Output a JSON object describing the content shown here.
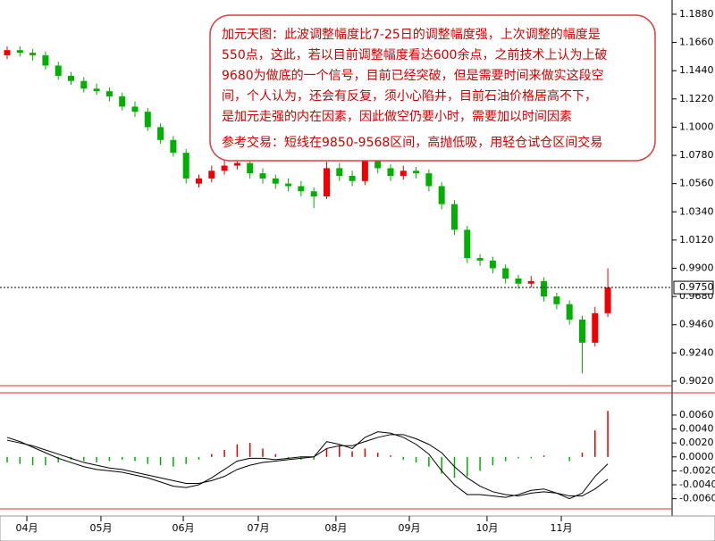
{
  "chart_data": [
    {
      "type": "candlestick",
      "annotation": [
        [
          "加元天图：此波调整幅度比7-25日的调整幅度强，上次调整的幅度是",
          "550点，这此，若以目前调整幅度看达600余点，之前技术上认为上破",
          "9680为做底的一个信号，目前已经突破，但是需要时间来做实这段空",
          "间，个人认为，还会有反复，须小心陷井，目前石油价格居高不下，",
          "是加元走强的内在因素，因此做空仍要小时，需要加以时间因素"
        ],
        [
          "参考交易：短线在9850-9568区间，高抛低吸，用轻仓试仓区间交易"
        ]
      ],
      "x": [
        0,
        1,
        2,
        3,
        4,
        5,
        6,
        7,
        8,
        9,
        10,
        11,
        12,
        13,
        14,
        15,
        16,
        17,
        18,
        19,
        20,
        21,
        22,
        23,
        24,
        25,
        26,
        27,
        28,
        29,
        30,
        31,
        32,
        33,
        34,
        35,
        36,
        37,
        38,
        39,
        40,
        41,
        42,
        43,
        44,
        45,
        46,
        47
      ],
      "open": [
        1.156,
        1.16,
        1.158,
        1.156,
        1.148,
        1.14,
        1.136,
        1.13,
        1.128,
        1.124,
        1.116,
        1.112,
        1.1,
        1.09,
        1.08,
        1.056,
        1.06,
        1.066,
        1.07,
        1.072,
        1.064,
        1.06,
        1.056,
        1.054,
        1.05,
        1.046,
        1.068,
        1.062,
        1.058,
        1.074,
        1.068,
        1.062,
        1.066,
        1.064,
        1.054,
        1.04,
        1.02,
        0.998,
        0.996,
        0.99,
        0.982,
        0.978,
        0.98,
        0.968,
        0.962,
        0.95,
        0.932,
        0.955
      ],
      "high": [
        1.163,
        1.163,
        1.161,
        1.159,
        1.151,
        1.143,
        1.139,
        1.134,
        1.131,
        1.127,
        1.12,
        1.115,
        1.103,
        1.093,
        1.083,
        1.063,
        1.07,
        1.074,
        1.076,
        1.075,
        1.068,
        1.063,
        1.06,
        1.058,
        1.053,
        1.073,
        1.072,
        1.066,
        1.09,
        1.078,
        1.071,
        1.07,
        1.069,
        1.067,
        1.057,
        1.043,
        1.023,
        1.001,
        0.999,
        0.993,
        0.985,
        0.984,
        0.983,
        0.971,
        0.965,
        0.953,
        0.96,
        0.99
      ],
      "low": [
        1.153,
        1.155,
        1.152,
        1.145,
        1.137,
        1.133,
        1.127,
        1.125,
        1.12,
        1.113,
        1.108,
        1.097,
        1.087,
        1.077,
        1.056,
        1.053,
        1.057,
        1.063,
        1.067,
        1.06,
        1.056,
        1.052,
        1.05,
        1.046,
        1.037,
        1.044,
        1.058,
        1.054,
        1.055,
        1.064,
        1.058,
        1.059,
        1.06,
        1.05,
        1.036,
        1.016,
        0.994,
        0.992,
        0.986,
        0.978,
        0.974,
        0.975,
        0.964,
        0.958,
        0.946,
        0.908,
        0.929,
        0.952
      ],
      "close": [
        1.16,
        1.158,
        1.156,
        1.148,
        1.14,
        1.136,
        1.13,
        1.128,
        1.124,
        1.116,
        1.112,
        1.1,
        1.09,
        1.08,
        1.06,
        1.06,
        1.066,
        1.07,
        1.072,
        1.064,
        1.06,
        1.056,
        1.054,
        1.05,
        1.046,
        1.068,
        1.062,
        1.058,
        1.074,
        1.068,
        1.062,
        1.066,
        1.064,
        1.054,
        1.04,
        1.02,
        0.998,
        0.996,
        0.99,
        0.982,
        0.978,
        0.98,
        0.968,
        0.962,
        0.95,
        0.932,
        0.955,
        0.975
      ],
      "up_color": "#f00000",
      "down_color": "#00b000",
      "xlim": [
        -0.56,
        52.03
      ],
      "xticks": [
        {
          "value": 1.54,
          "label": "04月"
        },
        {
          "value": 7.34,
          "label": "05月"
        },
        {
          "value": 13.78,
          "label": "06月"
        },
        {
          "value": 19.65,
          "label": "07月"
        },
        {
          "value": 25.73,
          "label": "08月"
        },
        {
          "value": 31.47,
          "label": "09月"
        },
        {
          "value": 37.55,
          "label": "10月"
        },
        {
          "value": 43.36,
          "label": "11月"
        }
      ],
      "ylim": [
        0.8985,
        1.1991
      ],
      "yticks": [
        {
          "value": 1.188,
          "label": "1.1880"
        },
        {
          "value": 1.166,
          "label": "1.1660"
        },
        {
          "value": 1.144,
          "label": "1.1440"
        },
        {
          "value": 1.122,
          "label": "1.1220"
        },
        {
          "value": 1.1,
          "label": "1.1000"
        },
        {
          "value": 1.078,
          "label": "1.0780"
        },
        {
          "value": 1.056,
          "label": "1.0560"
        },
        {
          "value": 1.034,
          "label": "1.0340"
        },
        {
          "value": 1.012,
          "label": "1.0120"
        },
        {
          "value": 0.99,
          "label": "0.9900"
        },
        {
          "value": 0.968,
          "label": "0.9680"
        },
        {
          "value": 0.946,
          "label": "0.9460"
        },
        {
          "value": 0.924,
          "label": "0.9240"
        },
        {
          "value": 0.902,
          "label": "0.9020"
        }
      ],
      "last_price": {
        "value": 0.975,
        "label": "0.9750"
      }
    },
    {
      "type": "macd",
      "xlim": [
        -0.56,
        52.03
      ],
      "histogram": {
        "up_color": "#e00000",
        "down_color": "#00b000",
        "values": [
          -0.0008,
          -0.001,
          -0.0012,
          -0.0012,
          -0.0008,
          -0.0004,
          -0.0006,
          -0.0008,
          -0.0006,
          -0.0004,
          -0.0006,
          -0.001,
          -0.0012,
          -0.0014,
          -0.001,
          -0.0004,
          0.0004,
          0.001,
          0.0018,
          0.002,
          0.0012,
          0.0004,
          -0.0002,
          -0.0004,
          -0.0004,
          0.0012,
          0.0016,
          0.0008,
          0.0012,
          0.0006,
          0.0002,
          -0.0004,
          -0.0008,
          -0.0014,
          -0.0024,
          -0.003,
          -0.0028,
          -0.002,
          -0.0012,
          -0.0006,
          -0.0002,
          -0.0002,
          0.0002,
          0.0,
          -0.0006,
          0.0006,
          0.0038,
          0.0066
        ]
      },
      "series": [
        {
          "color": "#000000",
          "values": [
            0.0028,
            0.0022,
            0.0014,
            0.0006,
            -0.0002,
            -0.0008,
            -0.0014,
            -0.0018,
            -0.002,
            -0.0022,
            -0.0026,
            -0.003,
            -0.0036,
            -0.0042,
            -0.0044,
            -0.004,
            -0.003,
            -0.0018,
            -0.0006,
            -0.0002,
            -0.0002,
            -0.0004,
            -0.0002,
            0.0,
            0.0,
            0.0022,
            0.0018,
            0.0012,
            0.0028,
            0.0036,
            0.0034,
            0.0028,
            0.0018,
            0.0004,
            -0.002,
            -0.004,
            -0.0054,
            -0.0054,
            -0.0056,
            -0.0058,
            -0.0054,
            -0.0048,
            -0.0046,
            -0.0052,
            -0.006,
            -0.0052,
            -0.0028,
            -0.001
          ]
        },
        {
          "color": "#000000",
          "values": [
            0.0024,
            0.002,
            0.0016,
            0.001,
            0.0004,
            -0.0002,
            -0.0008,
            -0.0012,
            -0.0016,
            -0.0018,
            -0.0022,
            -0.0026,
            -0.003,
            -0.0034,
            -0.0038,
            -0.0038,
            -0.0034,
            -0.0028,
            -0.0018,
            -0.0012,
            -0.0008,
            -0.0006,
            -0.0004,
            -0.0002,
            0.0,
            0.0012,
            0.0016,
            0.0016,
            0.0022,
            0.0028,
            0.0032,
            0.0032,
            0.0026,
            0.0018,
            0.0006,
            -0.0014,
            -0.003,
            -0.0042,
            -0.005,
            -0.0054,
            -0.0056,
            -0.0052,
            -0.005,
            -0.0052,
            -0.0056,
            -0.0056,
            -0.0046,
            -0.0032
          ]
        }
      ],
      "ylim": [
        -0.0072,
        0.0083
      ],
      "yticks": [
        {
          "value": 0.006,
          "label": "0.0060"
        },
        {
          "value": 0.004,
          "label": "0.0040"
        },
        {
          "value": 0.002,
          "label": "0.0020"
        },
        {
          "value": 0,
          "label": "0.0000"
        },
        {
          "value": -0.002,
          "label": "-0.0020"
        },
        {
          "value": -0.004,
          "label": "-0.0040"
        },
        {
          "value": -0.006,
          "label": "-0.0060"
        }
      ]
    }
  ]
}
